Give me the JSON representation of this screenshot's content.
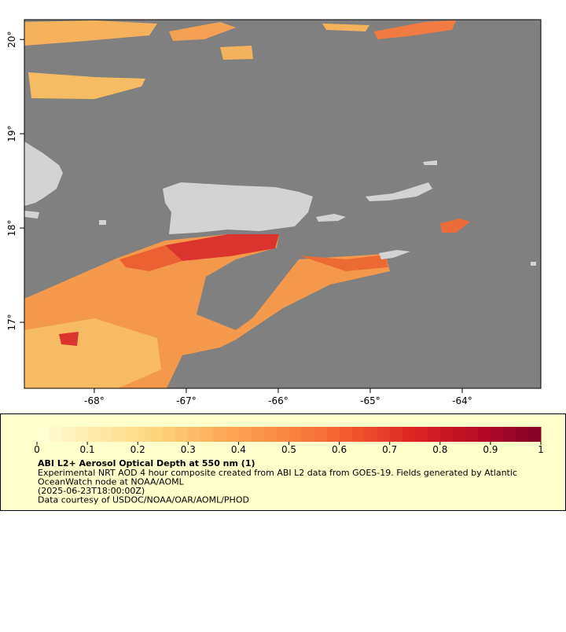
{
  "map": {
    "xlim": [
      -68.76,
      -63.145
    ],
    "ylim": [
      16.3,
      20.21
    ],
    "xticks": [
      {
        "value": -68,
        "label": "-68°"
      },
      {
        "value": -67,
        "label": "-67°"
      },
      {
        "value": -66,
        "label": "-66°"
      },
      {
        "value": -65,
        "label": "-65°"
      },
      {
        "value": -64,
        "label": "-64°"
      }
    ],
    "yticks": [
      {
        "value": 20,
        "label": "20°"
      },
      {
        "value": 19,
        "label": "19°"
      },
      {
        "value": 18,
        "label": "18°"
      },
      {
        "value": 17,
        "label": "17°"
      }
    ]
  },
  "colorbar": {
    "title": "ABI L2+ Aerosol Optical Depth at 550 nm (1)",
    "range": [
      0,
      1
    ],
    "ticks": [
      0,
      0.1,
      0.2,
      0.3,
      0.4,
      0.5,
      0.6,
      0.7,
      0.8,
      0.9,
      1
    ],
    "colors": [
      "#ffffd9",
      "#fee9a6",
      "#fdd07a",
      "#fca855",
      "#f98540",
      "#f0582d",
      "#dc2422",
      "#b60a26",
      "#800026"
    ]
  },
  "notes": [
    "Experimental NRT AOD 4 hour composite created from ABI L2 data from GOES-19. Fields generated by Atlantic",
    "OceanWatch node at NOAA/AOML",
    "(2025-06-23T18:00:00Z)",
    "Data courtesy of USDOC/NOAA/OAR/AOML/PHOD"
  ]
}
